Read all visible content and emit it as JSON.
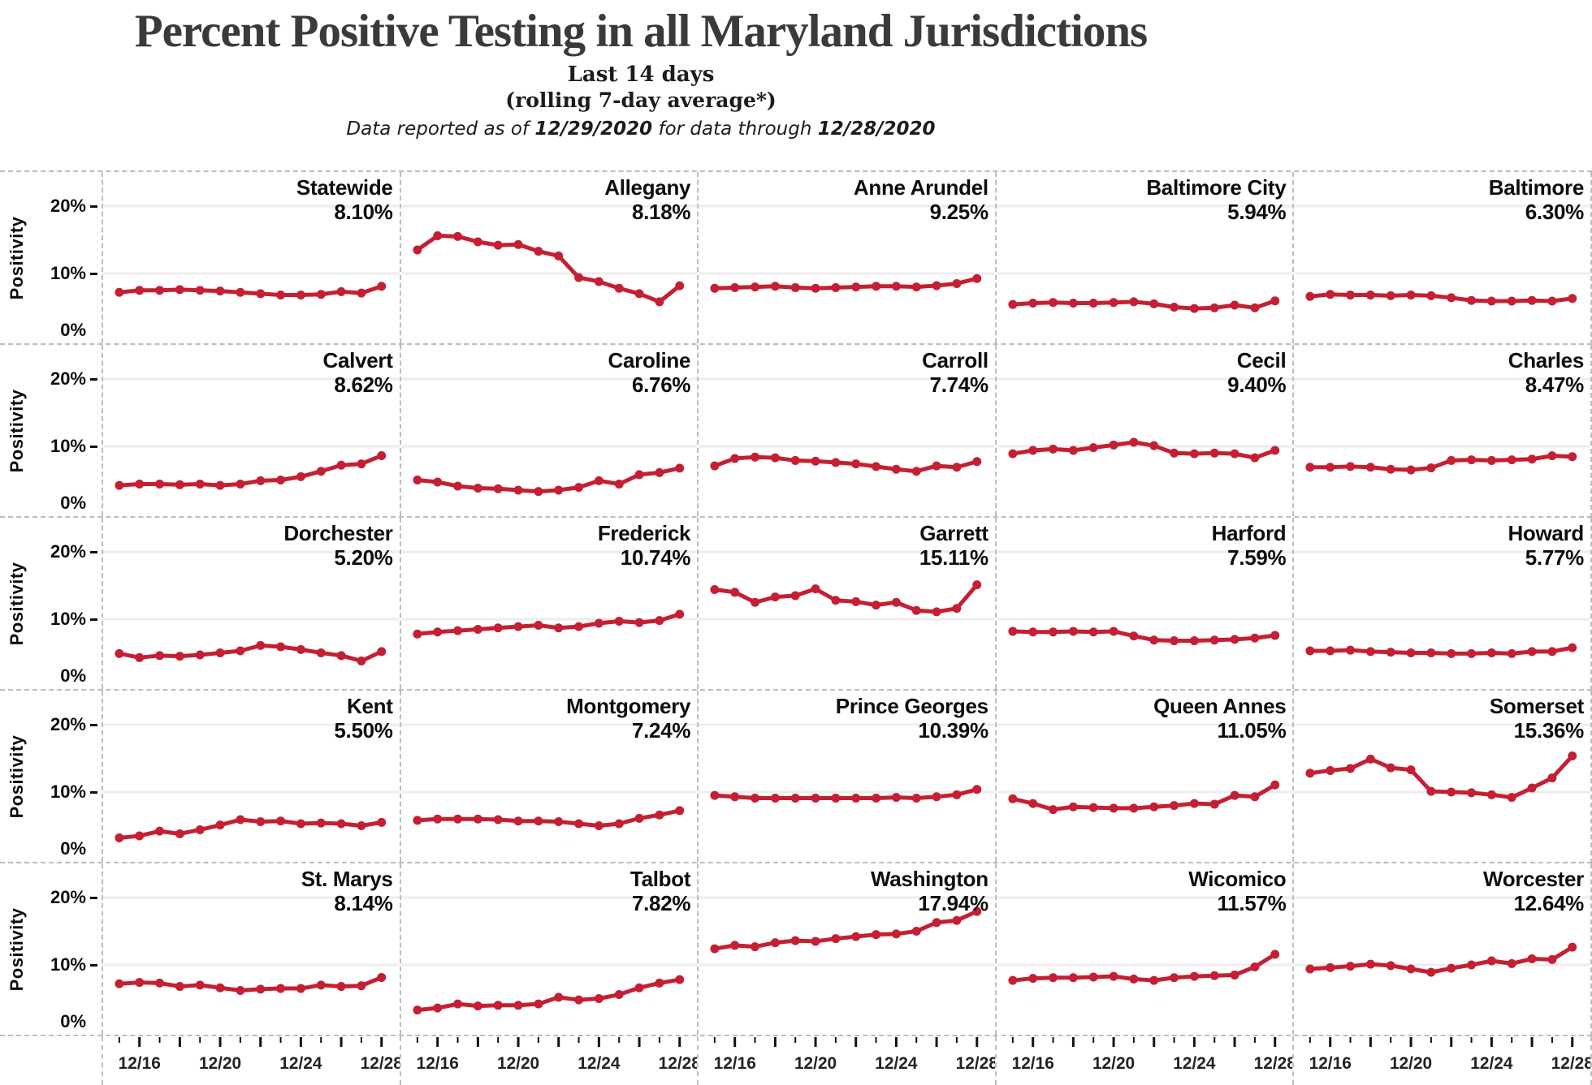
{
  "header": {
    "title": "Percent Positive Testing in all Maryland Jurisdictions",
    "subtitle_line1": "Last 14 days",
    "subtitle_line2": "(rolling 7-day average*)",
    "report_prefix": "Data reported as of ",
    "report_date": "12/29/2020",
    "report_middle": " for data through ",
    "report_through_date": "12/28/2020"
  },
  "axes": {
    "y_label": "Positivity",
    "y_tick_labels": [
      "20%",
      "10%",
      "0%"
    ],
    "x_tick_labels": [
      "12/16",
      "12/20",
      "12/24",
      "12/28"
    ],
    "x_tick_days": [
      1,
      5,
      9,
      13
    ]
  },
  "colors": {
    "line": "#c41f33",
    "grid": "#ededed",
    "border": "#bdbdbd",
    "title": "#3a3a3a",
    "text": "#111111"
  },
  "chart_data": {
    "type": "line",
    "title": "Percent Positive Testing in all Maryland Jurisdictions",
    "subtitle": "Last 14 days (rolling 7-day average*)",
    "ylabel": "Positivity",
    "ylim": [
      0,
      25
    ],
    "y_ticks": [
      0,
      10,
      20
    ],
    "grid": "horizontal",
    "x": [
      "12/15",
      "12/16",
      "12/17",
      "12/18",
      "12/19",
      "12/20",
      "12/21",
      "12/22",
      "12/23",
      "12/24",
      "12/25",
      "12/26",
      "12/27",
      "12/28"
    ],
    "series": [
      {
        "name": "Statewide",
        "latest": "8.10%",
        "values": [
          7.2,
          7.5,
          7.5,
          7.6,
          7.5,
          7.4,
          7.2,
          7.0,
          6.8,
          6.8,
          6.9,
          7.3,
          7.1,
          8.1
        ]
      },
      {
        "name": "Allegany",
        "latest": "8.18%",
        "values": [
          13.5,
          15.6,
          15.5,
          14.7,
          14.2,
          14.3,
          13.3,
          12.6,
          9.4,
          8.8,
          7.8,
          7.0,
          5.8,
          8.18
        ]
      },
      {
        "name": "Anne Arundel",
        "latest": "9.25%",
        "values": [
          7.8,
          7.9,
          8.0,
          8.1,
          7.9,
          7.8,
          7.9,
          8.0,
          8.1,
          8.1,
          8.0,
          8.2,
          8.5,
          9.25
        ]
      },
      {
        "name": "Baltimore City",
        "latest": "5.94%",
        "values": [
          5.4,
          5.6,
          5.7,
          5.6,
          5.6,
          5.7,
          5.8,
          5.5,
          5.0,
          4.8,
          4.9,
          5.3,
          4.9,
          5.94
        ]
      },
      {
        "name": "Baltimore",
        "latest": "6.30%",
        "values": [
          6.6,
          6.9,
          6.8,
          6.8,
          6.7,
          6.8,
          6.7,
          6.4,
          6.0,
          5.9,
          5.9,
          6.0,
          5.9,
          6.3
        ]
      },
      {
        "name": "Calvert",
        "latest": "8.62%",
        "values": [
          4.2,
          4.4,
          4.4,
          4.3,
          4.4,
          4.2,
          4.4,
          4.9,
          5.0,
          5.5,
          6.3,
          7.2,
          7.4,
          8.62
        ]
      },
      {
        "name": "Caroline",
        "latest": "6.76%",
        "values": [
          5.0,
          4.7,
          4.1,
          3.8,
          3.7,
          3.5,
          3.3,
          3.5,
          3.9,
          4.9,
          4.4,
          5.8,
          6.1,
          6.76
        ]
      },
      {
        "name": "Carroll",
        "latest": "7.74%",
        "values": [
          7.1,
          8.2,
          8.4,
          8.3,
          7.9,
          7.8,
          7.6,
          7.4,
          7.0,
          6.6,
          6.3,
          7.1,
          6.9,
          7.74
        ]
      },
      {
        "name": "Cecil",
        "latest": "9.40%",
        "values": [
          8.9,
          9.4,
          9.6,
          9.4,
          9.8,
          10.2,
          10.6,
          10.1,
          9.0,
          8.9,
          9.0,
          8.9,
          8.3,
          9.4
        ]
      },
      {
        "name": "Charles",
        "latest": "8.47%",
        "values": [
          6.9,
          6.9,
          7.0,
          6.9,
          6.6,
          6.5,
          6.8,
          7.9,
          8.0,
          7.9,
          8.0,
          8.1,
          8.6,
          8.47
        ]
      },
      {
        "name": "Dorchester",
        "latest": "5.20%",
        "values": [
          4.9,
          4.3,
          4.6,
          4.5,
          4.7,
          5.0,
          5.3,
          6.1,
          5.9,
          5.5,
          5.0,
          4.6,
          3.8,
          5.2
        ]
      },
      {
        "name": "Frederick",
        "latest": "10.74%",
        "values": [
          7.8,
          8.1,
          8.3,
          8.5,
          8.7,
          8.9,
          9.1,
          8.7,
          8.9,
          9.4,
          9.7,
          9.5,
          9.8,
          10.74
        ]
      },
      {
        "name": "Garrett",
        "latest": "15.11%",
        "values": [
          14.4,
          14.0,
          12.5,
          13.3,
          13.5,
          14.5,
          12.8,
          12.6,
          12.1,
          12.5,
          11.3,
          11.1,
          11.6,
          15.11
        ]
      },
      {
        "name": "Harford",
        "latest": "7.59%",
        "values": [
          8.2,
          8.1,
          8.1,
          8.2,
          8.1,
          8.2,
          7.5,
          6.9,
          6.8,
          6.8,
          6.9,
          7.0,
          7.2,
          7.59
        ]
      },
      {
        "name": "Howard",
        "latest": "5.77%",
        "values": [
          5.3,
          5.3,
          5.4,
          5.2,
          5.1,
          5.0,
          5.0,
          4.9,
          4.9,
          5.0,
          4.9,
          5.2,
          5.2,
          5.77
        ]
      },
      {
        "name": "Kent",
        "latest": "5.50%",
        "values": [
          3.2,
          3.5,
          4.2,
          3.8,
          4.4,
          5.1,
          5.9,
          5.6,
          5.7,
          5.3,
          5.4,
          5.3,
          5.0,
          5.5
        ]
      },
      {
        "name": "Montgomery",
        "latest": "7.24%",
        "values": [
          5.8,
          6.0,
          6.0,
          6.0,
          5.9,
          5.7,
          5.7,
          5.6,
          5.3,
          5.0,
          5.3,
          6.1,
          6.6,
          7.24
        ]
      },
      {
        "name": "Prince Georges",
        "latest": "10.39%",
        "values": [
          9.5,
          9.3,
          9.1,
          9.1,
          9.1,
          9.1,
          9.1,
          9.1,
          9.1,
          9.2,
          9.1,
          9.3,
          9.6,
          10.39
        ]
      },
      {
        "name": "Queen Annes",
        "latest": "11.05%",
        "values": [
          9.0,
          8.3,
          7.4,
          7.8,
          7.7,
          7.6,
          7.6,
          7.8,
          8.0,
          8.3,
          8.2,
          9.5,
          9.3,
          11.05
        ]
      },
      {
        "name": "Somerset",
        "latest": "15.36%",
        "values": [
          12.8,
          13.2,
          13.5,
          14.9,
          13.6,
          13.3,
          10.1,
          10.0,
          9.9,
          9.6,
          9.2,
          10.6,
          12.1,
          15.36
        ]
      },
      {
        "name": "St. Marys",
        "latest": "8.14%",
        "values": [
          7.2,
          7.4,
          7.3,
          6.8,
          7.0,
          6.6,
          6.2,
          6.4,
          6.5,
          6.5,
          7.0,
          6.8,
          6.9,
          8.14
        ]
      },
      {
        "name": "Talbot",
        "latest": "7.82%",
        "values": [
          3.3,
          3.6,
          4.2,
          3.9,
          4.0,
          4.0,
          4.2,
          5.2,
          4.8,
          5.0,
          5.6,
          6.6,
          7.3,
          7.82
        ]
      },
      {
        "name": "Washington",
        "latest": "17.94%",
        "values": [
          12.4,
          12.9,
          12.7,
          13.3,
          13.6,
          13.5,
          13.9,
          14.2,
          14.5,
          14.6,
          15.0,
          16.3,
          16.6,
          17.94
        ]
      },
      {
        "name": "Wicomico",
        "latest": "11.57%",
        "values": [
          7.7,
          8.0,
          8.1,
          8.1,
          8.2,
          8.3,
          7.9,
          7.7,
          8.1,
          8.3,
          8.4,
          8.5,
          9.7,
          11.57
        ]
      },
      {
        "name": "Worcester",
        "latest": "12.64%",
        "values": [
          9.4,
          9.6,
          9.8,
          10.1,
          9.9,
          9.4,
          8.9,
          9.5,
          10.0,
          10.6,
          10.2,
          10.9,
          10.8,
          12.64
        ]
      }
    ]
  }
}
